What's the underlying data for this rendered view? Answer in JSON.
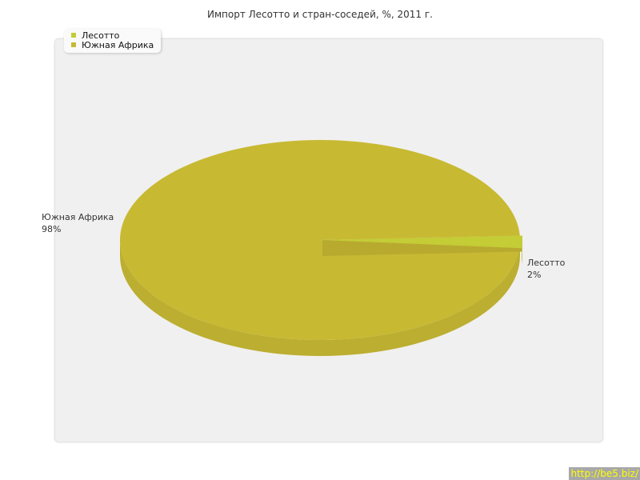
{
  "chart_data": {
    "type": "pie",
    "title": "Импорт Лесотто и стран-соседей, %, 2011 г.",
    "slices": [
      {
        "name": "Лесотто",
        "value": 2,
        "label": "2%",
        "color": "#c4cc36"
      },
      {
        "name": "Южная Африка",
        "value": 98,
        "label": "98%",
        "color": "#c8b933"
      }
    ],
    "legend_placement": "top-left",
    "three_d": true
  },
  "watermark": "http://be5.biz/"
}
